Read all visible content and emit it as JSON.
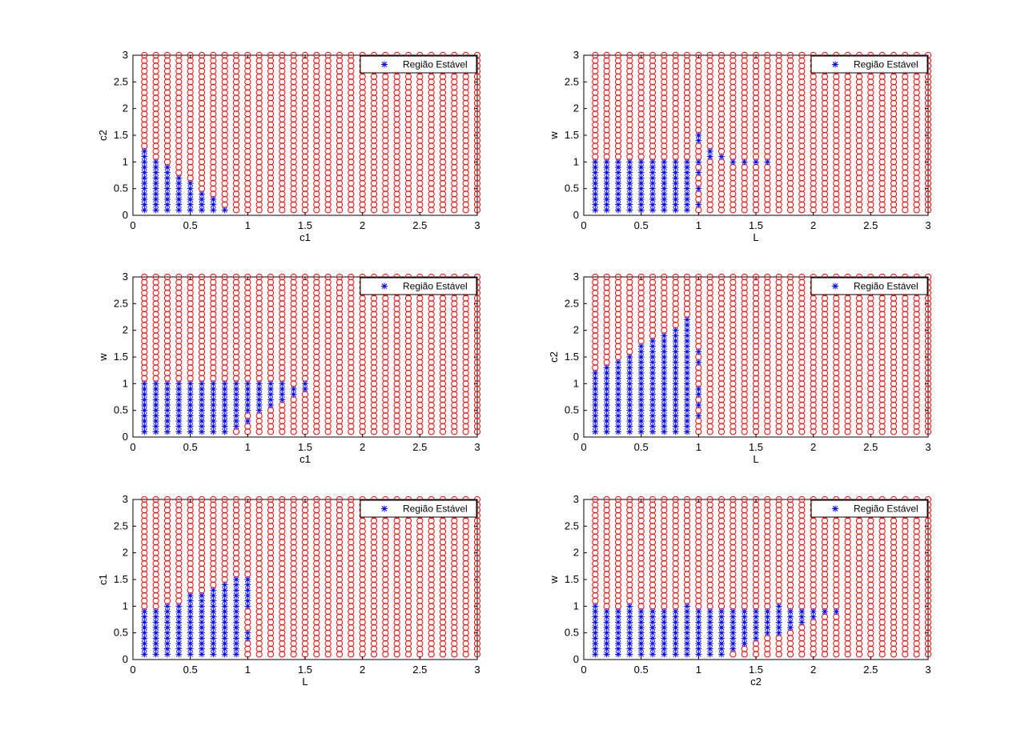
{
  "colors": {
    "unstable": "#ff0000",
    "stable": "#0000ff",
    "axis": "#000000",
    "background": "#ffffff"
  },
  "markers": {
    "unstable": "circle",
    "stable": "asterisk"
  },
  "chart_data": [
    {
      "type": "scatter",
      "xlabel": "c1",
      "ylabel": "c2",
      "xlim": [
        0,
        3
      ],
      "ylim": [
        0,
        3
      ],
      "xticks": [
        "0",
        "0.5",
        "1",
        "1.5",
        "2",
        "2.5",
        "3"
      ],
      "yticks": [
        "0",
        "0.5",
        "1",
        "1.5",
        "2",
        "2.5",
        "3"
      ],
      "grid_x": {
        "start": 0.1,
        "step": 0.1,
        "count": 30
      },
      "grid_y": {
        "start": 0.1,
        "step": 0.1,
        "count": 30
      },
      "legend": "Região Estável",
      "legend_position": "top-right",
      "stable_columns": [
        [
          0.1,
          1.2
        ],
        [
          0.2,
          1.0
        ],
        [
          0.3,
          0.9
        ],
        [
          0.4,
          0.7
        ],
        [
          0.5,
          0.6
        ],
        [
          0.6,
          0.4
        ],
        [
          0.7,
          0.3
        ],
        [
          0.8,
          0.1
        ]
      ]
    },
    {
      "type": "scatter",
      "xlabel": "L",
      "ylabel": "w",
      "xlim": [
        0,
        3
      ],
      "ylim": [
        0,
        3
      ],
      "xticks": [
        "0",
        "0.5",
        "1",
        "1.5",
        "2",
        "2.5",
        "3"
      ],
      "yticks": [
        "0",
        "0.5",
        "1",
        "1.5",
        "2",
        "2.5",
        "3"
      ],
      "grid_x": {
        "start": 0.1,
        "step": 0.1,
        "count": 30
      },
      "grid_y": {
        "start": 0.1,
        "step": 0.1,
        "count": 30
      },
      "legend": "Região Estável",
      "legend_position": "top-right",
      "stable_columns": [
        [
          0.1,
          1.0
        ],
        [
          0.2,
          1.0
        ],
        [
          0.3,
          1.0
        ],
        [
          0.4,
          1.0
        ],
        [
          0.5,
          1.0
        ],
        [
          0.6,
          1.0
        ],
        [
          0.7,
          1.0
        ],
        [
          0.8,
          1.0
        ],
        [
          0.9,
          1.0
        ]
      ],
      "stable_points": [
        [
          1.0,
          0.2
        ],
        [
          1.0,
          0.5
        ],
        [
          1.0,
          0.8
        ],
        [
          1.0,
          1.0
        ],
        [
          1.0,
          1.4
        ],
        [
          1.0,
          1.5
        ],
        [
          1.1,
          1.1
        ],
        [
          1.1,
          1.2
        ],
        [
          1.2,
          1.1
        ],
        [
          1.3,
          1.0
        ],
        [
          1.4,
          1.0
        ],
        [
          1.5,
          1.0
        ],
        [
          1.6,
          1.0
        ]
      ]
    },
    {
      "type": "scatter",
      "xlabel": "c1",
      "ylabel": "w",
      "xlim": [
        0,
        3
      ],
      "ylim": [
        0,
        3
      ],
      "xticks": [
        "0",
        "0.5",
        "1",
        "1.5",
        "2",
        "2.5",
        "3"
      ],
      "yticks": [
        "0",
        "0.5",
        "1",
        "1.5",
        "2",
        "2.5",
        "3"
      ],
      "grid_x": {
        "start": 0.1,
        "step": 0.1,
        "count": 30
      },
      "grid_y": {
        "start": 0.1,
        "step": 0.1,
        "count": 30
      },
      "legend": "Região Estável",
      "legend_position": "top-right",
      "stable_columns": [
        [
          0.1,
          1.0
        ],
        [
          0.2,
          1.0
        ],
        [
          0.3,
          1.0
        ],
        [
          0.4,
          1.0
        ],
        [
          0.5,
          1.0
        ],
        [
          0.6,
          1.0
        ],
        [
          0.7,
          1.0
        ],
        [
          0.8,
          1.0
        ]
      ],
      "stable_points": [
        [
          0.9,
          0.2
        ],
        [
          0.9,
          0.3
        ],
        [
          0.9,
          0.4
        ],
        [
          0.9,
          0.5
        ],
        [
          0.9,
          0.6
        ],
        [
          0.9,
          0.7
        ],
        [
          0.9,
          0.8
        ],
        [
          0.9,
          0.9
        ],
        [
          0.9,
          1.0
        ],
        [
          1.0,
          0.3
        ],
        [
          1.0,
          0.5
        ],
        [
          1.0,
          0.6
        ],
        [
          1.0,
          0.7
        ],
        [
          1.0,
          0.8
        ],
        [
          1.0,
          0.9
        ],
        [
          1.0,
          1.0
        ],
        [
          1.1,
          0.5
        ],
        [
          1.1,
          0.6
        ],
        [
          1.1,
          0.7
        ],
        [
          1.1,
          0.8
        ],
        [
          1.1,
          0.9
        ],
        [
          1.1,
          1.0
        ],
        [
          1.2,
          0.6
        ],
        [
          1.2,
          0.7
        ],
        [
          1.2,
          0.8
        ],
        [
          1.2,
          0.9
        ],
        [
          1.2,
          1.0
        ],
        [
          1.3,
          0.7
        ],
        [
          1.3,
          0.8
        ],
        [
          1.3,
          0.9
        ],
        [
          1.3,
          1.0
        ],
        [
          1.4,
          0.8
        ],
        [
          1.4,
          0.9
        ],
        [
          1.5,
          0.9
        ],
        [
          1.5,
          1.0
        ]
      ]
    },
    {
      "type": "scatter",
      "xlabel": "L",
      "ylabel": "c2",
      "xlim": [
        0,
        3
      ],
      "ylim": [
        0,
        3
      ],
      "xticks": [
        "0",
        "0.5",
        "1",
        "1.5",
        "2",
        "2.5",
        "3"
      ],
      "yticks": [
        "0",
        "0.5",
        "1",
        "1.5",
        "2",
        "2.5",
        "3"
      ],
      "grid_x": {
        "start": 0.1,
        "step": 0.1,
        "count": 30
      },
      "grid_y": {
        "start": 0.1,
        "step": 0.1,
        "count": 30
      },
      "legend": "Região Estável",
      "legend_position": "top-right",
      "stable_columns": [
        [
          0.1,
          1.2
        ],
        [
          0.2,
          1.3
        ],
        [
          0.3,
          1.4
        ],
        [
          0.4,
          1.5
        ],
        [
          0.5,
          1.7
        ],
        [
          0.6,
          1.8
        ],
        [
          0.7,
          1.9
        ],
        [
          0.8,
          2.0
        ],
        [
          0.9,
          2.2
        ]
      ],
      "stable_points": [
        [
          1.0,
          0.4
        ],
        [
          1.0,
          0.6
        ],
        [
          1.0,
          0.8
        ],
        [
          1.0,
          0.9
        ],
        [
          1.0,
          1.4
        ],
        [
          1.0,
          1.6
        ]
      ]
    },
    {
      "type": "scatter",
      "xlabel": "L",
      "ylabel": "c1",
      "xlim": [
        0,
        3
      ],
      "ylim": [
        0,
        3
      ],
      "xticks": [
        "0",
        "0.5",
        "1",
        "1.5",
        "2",
        "2.5",
        "3"
      ],
      "yticks": [
        "0",
        "0.5",
        "1",
        "1.5",
        "2",
        "2.5",
        "3"
      ],
      "grid_x": {
        "start": 0.1,
        "step": 0.1,
        "count": 30
      },
      "grid_y": {
        "start": 0.1,
        "step": 0.1,
        "count": 30
      },
      "legend": "Região Estável",
      "legend_position": "top-right",
      "stable_columns": [
        [
          0.1,
          0.9
        ],
        [
          0.2,
          0.9
        ],
        [
          0.3,
          1.0
        ],
        [
          0.4,
          1.0
        ],
        [
          0.5,
          1.2
        ],
        [
          0.6,
          1.2
        ],
        [
          0.7,
          1.3
        ],
        [
          0.8,
          1.4
        ],
        [
          0.9,
          1.5
        ]
      ],
      "stable_points": [
        [
          1.0,
          0.4
        ],
        [
          1.0,
          0.5
        ],
        [
          1.0,
          1.0
        ],
        [
          1.0,
          1.1
        ],
        [
          1.0,
          1.2
        ],
        [
          1.0,
          1.3
        ],
        [
          1.0,
          1.4
        ],
        [
          1.0,
          1.5
        ]
      ]
    },
    {
      "type": "scatter",
      "xlabel": "c2",
      "ylabel": "w",
      "xlim": [
        0,
        3
      ],
      "ylim": [
        0,
        3
      ],
      "xticks": [
        "0",
        "0.5",
        "1",
        "1.5",
        "2",
        "2.5",
        "3"
      ],
      "yticks": [
        "0",
        "0.5",
        "1",
        "1.5",
        "2",
        "2.5",
        "3"
      ],
      "grid_x": {
        "start": 0.1,
        "step": 0.1,
        "count": 30
      },
      "grid_y": {
        "start": 0.1,
        "step": 0.1,
        "count": 30
      },
      "legend": "Região Estável",
      "legend_position": "top-right",
      "stable_columns": [
        [
          0.1,
          1.0
        ],
        [
          0.2,
          0.9
        ],
        [
          0.3,
          0.9
        ],
        [
          0.4,
          1.0
        ],
        [
          0.5,
          0.9
        ],
        [
          0.6,
          0.9
        ],
        [
          0.7,
          0.9
        ],
        [
          0.8,
          0.9
        ],
        [
          0.9,
          1.0
        ],
        [
          1.0,
          0.9
        ],
        [
          1.1,
          0.9
        ],
        [
          1.2,
          0.9
        ]
      ],
      "stable_points": [
        [
          1.3,
          0.2
        ],
        [
          1.3,
          0.3
        ],
        [
          1.3,
          0.4
        ],
        [
          1.3,
          0.5
        ],
        [
          1.3,
          0.6
        ],
        [
          1.3,
          0.7
        ],
        [
          1.3,
          0.8
        ],
        [
          1.3,
          0.9
        ],
        [
          1.4,
          0.3
        ],
        [
          1.4,
          0.4
        ],
        [
          1.4,
          0.5
        ],
        [
          1.4,
          0.6
        ],
        [
          1.4,
          0.7
        ],
        [
          1.4,
          0.8
        ],
        [
          1.4,
          0.9
        ],
        [
          1.5,
          0.4
        ],
        [
          1.5,
          0.5
        ],
        [
          1.5,
          0.6
        ],
        [
          1.5,
          0.7
        ],
        [
          1.5,
          0.8
        ],
        [
          1.5,
          0.9
        ],
        [
          1.6,
          0.5
        ],
        [
          1.6,
          0.6
        ],
        [
          1.6,
          0.7
        ],
        [
          1.6,
          0.8
        ],
        [
          1.6,
          0.9
        ],
        [
          1.7,
          0.5
        ],
        [
          1.7,
          0.6
        ],
        [
          1.7,
          0.7
        ],
        [
          1.7,
          0.8
        ],
        [
          1.7,
          0.9
        ],
        [
          1.7,
          1.0
        ],
        [
          1.8,
          0.6
        ],
        [
          1.8,
          0.7
        ],
        [
          1.8,
          0.8
        ],
        [
          1.8,
          0.9
        ],
        [
          1.9,
          0.7
        ],
        [
          1.9,
          0.8
        ],
        [
          1.9,
          0.9
        ],
        [
          2.0,
          0.8
        ],
        [
          2.0,
          0.9
        ],
        [
          2.1,
          0.9
        ],
        [
          2.2,
          0.9
        ]
      ]
    }
  ]
}
